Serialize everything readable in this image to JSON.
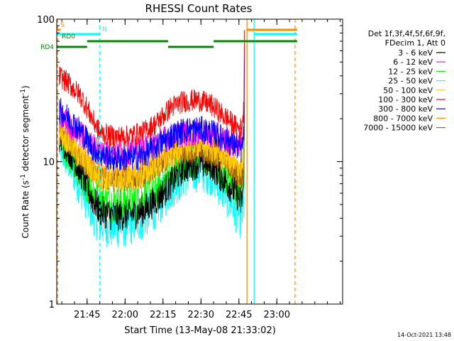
{
  "chart_data": {
    "type": "line",
    "title": "RHESSI Count Rates",
    "xlabel": "Start Time (13-May-08 21:33:02)",
    "ylabel": "Count Rate (s⁻¹ detector segment⁻¹)",
    "yscale": "log",
    "ylim": [
      1,
      100
    ],
    "xlim_minutes": [
      0,
      113
    ],
    "yticks": [
      {
        "value": 1,
        "label": "1"
      },
      {
        "value": 10,
        "label": "10"
      },
      {
        "value": 100,
        "label": "100"
      }
    ],
    "xticks": [
      {
        "t": 12,
        "label": "21:45"
      },
      {
        "t": 27,
        "label": "22:00"
      },
      {
        "t": 42,
        "label": "22:15"
      },
      {
        "t": 57,
        "label": "22:30"
      },
      {
        "t": 72,
        "label": "22:45"
      },
      {
        "t": 87,
        "label": "23:00"
      }
    ],
    "legend_header": [
      "Det 1f,3f,4f,5f,6f,9f,",
      "FDecim 1, Att 0"
    ],
    "legend_position": "right",
    "series": [
      {
        "name": "3 - 6 keV",
        "color": "#000000",
        "noise": 0.07,
        "points": [
          [
            1,
            15
          ],
          [
            5,
            12
          ],
          [
            10,
            8
          ],
          [
            14,
            5.5
          ],
          [
            17,
            4.5
          ],
          [
            22,
            4.2
          ],
          [
            28,
            4.2
          ],
          [
            34,
            4.5
          ],
          [
            40,
            5.5
          ],
          [
            45,
            7
          ],
          [
            50,
            9
          ],
          [
            56,
            9.8
          ],
          [
            61,
            9.5
          ],
          [
            66,
            7.5
          ],
          [
            71,
            6
          ],
          [
            73,
            5
          ],
          [
            74,
            7
          ]
        ]
      },
      {
        "name": "6 - 12 keV",
        "color": "#ff00ff",
        "noise": 0.06,
        "points": [
          [
            1,
            21
          ],
          [
            5,
            18
          ],
          [
            10,
            15.5
          ],
          [
            14,
            13
          ],
          [
            17,
            12
          ],
          [
            22,
            11.5
          ],
          [
            28,
            11.8
          ],
          [
            34,
            12.3
          ],
          [
            40,
            13.8
          ],
          [
            45,
            15
          ],
          [
            50,
            15.8
          ],
          [
            56,
            16
          ],
          [
            61,
            15.5
          ],
          [
            66,
            14.5
          ],
          [
            71,
            13
          ],
          [
            73,
            13.5
          ],
          [
            74,
            18
          ]
        ]
      },
      {
        "name": "12 - 25 keV",
        "color": "#00ff00",
        "noise": 0.09,
        "points": [
          [
            1,
            14
          ],
          [
            5,
            11
          ],
          [
            10,
            8
          ],
          [
            14,
            6.5
          ],
          [
            17,
            5.5
          ],
          [
            22,
            5.2
          ],
          [
            28,
            5.2
          ],
          [
            34,
            5.5
          ],
          [
            40,
            6.5
          ],
          [
            45,
            8
          ],
          [
            50,
            10
          ],
          [
            56,
            11
          ],
          [
            61,
            10.5
          ],
          [
            66,
            8.5
          ],
          [
            71,
            7
          ],
          [
            73,
            6
          ],
          [
            74,
            8
          ]
        ]
      },
      {
        "name": "25 - 50 keV",
        "color": "#00ffff",
        "noise": 0.1,
        "points": [
          [
            1,
            13
          ],
          [
            5,
            10
          ],
          [
            10,
            6.5
          ],
          [
            14,
            4.5
          ],
          [
            17,
            3.7
          ],
          [
            22,
            3.5
          ],
          [
            28,
            3.6
          ],
          [
            34,
            4
          ],
          [
            40,
            5
          ],
          [
            45,
            6.5
          ],
          [
            50,
            8
          ],
          [
            56,
            8.8
          ],
          [
            61,
            8.3
          ],
          [
            66,
            6.3
          ],
          [
            71,
            4.5
          ],
          [
            73,
            4
          ],
          [
            74,
            5
          ]
        ]
      },
      {
        "name": "50 - 100 keV",
        "color": "#ffcc00",
        "noise": 0.06,
        "points": [
          [
            1,
            16
          ],
          [
            5,
            13.5
          ],
          [
            10,
            10.5
          ],
          [
            14,
            8.5
          ],
          [
            17,
            7.8
          ],
          [
            22,
            7.5
          ],
          [
            28,
            7.6
          ],
          [
            34,
            8
          ],
          [
            40,
            9.5
          ],
          [
            45,
            11
          ],
          [
            50,
            12.5
          ],
          [
            56,
            13.2
          ],
          [
            61,
            12.5
          ],
          [
            66,
            11
          ],
          [
            71,
            9.3
          ],
          [
            73,
            9
          ],
          [
            74,
            12
          ]
        ]
      },
      {
        "name": "100 - 300 keV",
        "color": "#ff0000",
        "noise": 0.05,
        "points": [
          [
            1,
            40
          ],
          [
            5,
            35
          ],
          [
            10,
            28
          ],
          [
            14,
            20
          ],
          [
            17,
            16
          ],
          [
            22,
            15
          ],
          [
            28,
            15
          ],
          [
            34,
            16
          ],
          [
            40,
            19
          ],
          [
            45,
            24
          ],
          [
            50,
            26.5
          ],
          [
            56,
            27
          ],
          [
            61,
            25
          ],
          [
            66,
            21
          ],
          [
            71,
            17.5
          ],
          [
            73,
            17
          ],
          [
            74,
            24
          ]
        ]
      },
      {
        "name": "300 - 800 keV",
        "color": "#0000ff",
        "noise": 0.06,
        "points": [
          [
            1,
            23
          ],
          [
            5,
            20
          ],
          [
            10,
            16
          ],
          [
            14,
            12.5
          ],
          [
            17,
            11.2
          ],
          [
            22,
            10.5
          ],
          [
            28,
            10.5
          ],
          [
            34,
            11
          ],
          [
            40,
            13
          ],
          [
            45,
            15
          ],
          [
            50,
            16.5
          ],
          [
            56,
            17
          ],
          [
            61,
            16
          ],
          [
            66,
            14.5
          ],
          [
            71,
            13
          ],
          [
            73,
            12
          ],
          [
            74,
            15
          ]
        ]
      },
      {
        "name": "800 - 7000 keV",
        "color": "#ff8800",
        "noise": 0.06,
        "points": [
          [
            1,
            17
          ],
          [
            5,
            14.5
          ],
          [
            10,
            11
          ],
          [
            14,
            9
          ],
          [
            17,
            8.3
          ],
          [
            22,
            8
          ],
          [
            28,
            8
          ],
          [
            34,
            8.5
          ],
          [
            40,
            9.8
          ],
          [
            45,
            11.5
          ],
          [
            50,
            12.5
          ],
          [
            56,
            12.8
          ],
          [
            61,
            12
          ],
          [
            66,
            10.5
          ],
          [
            71,
            8.5
          ],
          [
            73,
            8
          ],
          [
            74,
            10
          ]
        ]
      },
      {
        "name": "7000 - 15000 keV",
        "color": "#996600",
        "noise": 0.05,
        "points": [
          [
            1,
            15.5
          ],
          [
            5,
            13
          ],
          [
            10,
            10
          ],
          [
            14,
            8.3
          ],
          [
            17,
            7.6
          ],
          [
            22,
            7.3
          ],
          [
            28,
            7.3
          ],
          [
            34,
            7.8
          ],
          [
            40,
            9
          ],
          [
            45,
            10.5
          ],
          [
            50,
            11.5
          ],
          [
            56,
            11.8
          ],
          [
            61,
            11
          ],
          [
            66,
            9.8
          ],
          [
            71,
            8
          ],
          [
            73,
            7.5
          ],
          [
            74,
            9.5
          ]
        ]
      }
    ],
    "flags": [
      {
        "label": "S",
        "color": "#ff8800",
        "level": 1,
        "label_t": 1.5,
        "segments": [
          [
            0,
            1.5
          ],
          [
            75,
            95
          ]
        ]
      },
      {
        "label": "N",
        "color": "#00ffff",
        "level": 2,
        "label_t": 18,
        "segments": [
          [
            0,
            17
          ],
          [
            78,
            95
          ]
        ]
      },
      {
        "label": "RD0",
        "color": "#008800",
        "level": 3,
        "label_t": 2,
        "segments": [
          [
            12,
            44
          ],
          [
            62,
            95
          ]
        ]
      },
      {
        "label": "RD4",
        "color": "#008800",
        "level": 4,
        "label_t": null,
        "segments": [
          [
            0,
            12
          ],
          [
            44,
            62
          ]
        ]
      }
    ],
    "vlines": [
      {
        "t": -0.5,
        "color": "#00ffff",
        "style": "solid"
      },
      {
        "t": 0.3,
        "color": "#ff8800",
        "style": "dashed"
      },
      {
        "t": 17,
        "color": "#00ffff",
        "style": "dashed"
      },
      {
        "t": 78,
        "color": "#00ffff",
        "style": "solid"
      },
      {
        "t": 75.2,
        "color": "#ff8800",
        "style": "solid"
      },
      {
        "t": 94.2,
        "color": "#ff8800",
        "style": "dashed"
      }
    ],
    "timestamp": "14-Oct-2021 13:48"
  }
}
